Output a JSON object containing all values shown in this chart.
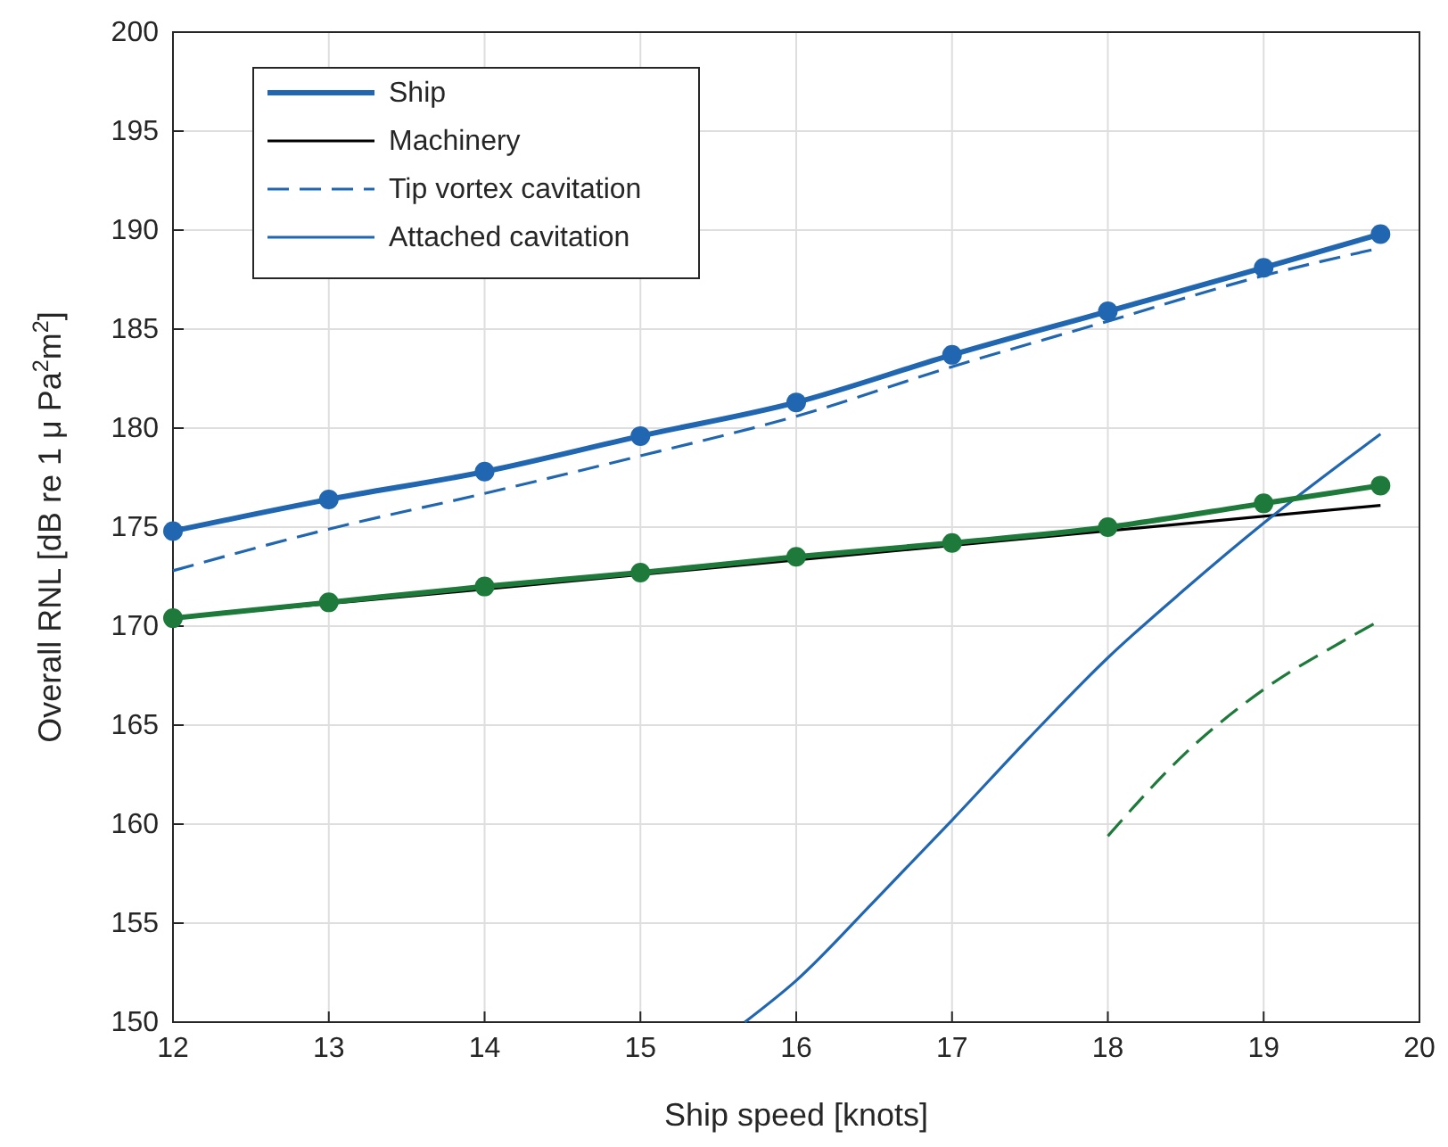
{
  "chart_data": {
    "type": "line",
    "xlabel": "Ship speed [knots]",
    "ylabel": "Overall RNL [dB re 1 μ Pa$^{2}$m$^{2}$]",
    "xlim": [
      12,
      20
    ],
    "xticks": [
      12,
      13,
      14,
      15,
      16,
      17,
      18,
      19,
      20
    ],
    "ylim": [
      150,
      200
    ],
    "yticks": [
      150,
      155,
      160,
      165,
      170,
      175,
      180,
      185,
      190,
      195,
      200
    ],
    "grid": true,
    "legend": "top left",
    "series": [
      {
        "name": "Ship",
        "color": "#2166b0",
        "marker": "circle",
        "line_style": "solid",
        "x": [
          12,
          13,
          14,
          15,
          16,
          17,
          18,
          19,
          19.75
        ],
        "values": [
          174.8,
          176.4,
          177.8,
          179.6,
          181.3,
          183.7,
          185.9,
          188.1,
          189.8
        ]
      },
      {
        "name": "Machinery",
        "color": "#000000",
        "line_style": "solid",
        "x": [
          12,
          19.75
        ],
        "values": [
          170.4,
          176.1
        ]
      },
      {
        "name": "Tip vortex cavitation",
        "color": "#2166b0",
        "line_style": "dashed",
        "x": [
          12,
          13,
          14,
          15,
          16,
          17,
          18,
          19,
          19.75
        ],
        "values": [
          172.8,
          174.9,
          176.7,
          178.6,
          180.6,
          183.1,
          185.4,
          187.7,
          189.1
        ]
      },
      {
        "name": "Attached cavitation",
        "color": "#2166b0",
        "line_style": "solid",
        "x": [
          15.67,
          16,
          16.5,
          17,
          17.5,
          18,
          18.5,
          19,
          19.75
        ],
        "values": [
          150,
          152.1,
          156.1,
          160.2,
          164.4,
          168.4,
          171.9,
          175.2,
          179.7
        ]
      },
      {
        "color": "#1e7a3a",
        "marker": "circle",
        "line_style": "solid",
        "x": [
          12,
          13,
          14,
          15,
          16,
          17,
          18,
          19,
          19.75
        ],
        "values": [
          170.4,
          171.2,
          172.0,
          172.7,
          173.5,
          174.2,
          175.0,
          176.2,
          177.1
        ]
      },
      {
        "color": "#1e7a3a",
        "line_style": "dashed",
        "x": [
          18,
          18.5,
          19,
          19.5,
          19.75
        ],
        "values": [
          159.4,
          163.6,
          166.8,
          169.2,
          170.3
        ]
      }
    ]
  }
}
